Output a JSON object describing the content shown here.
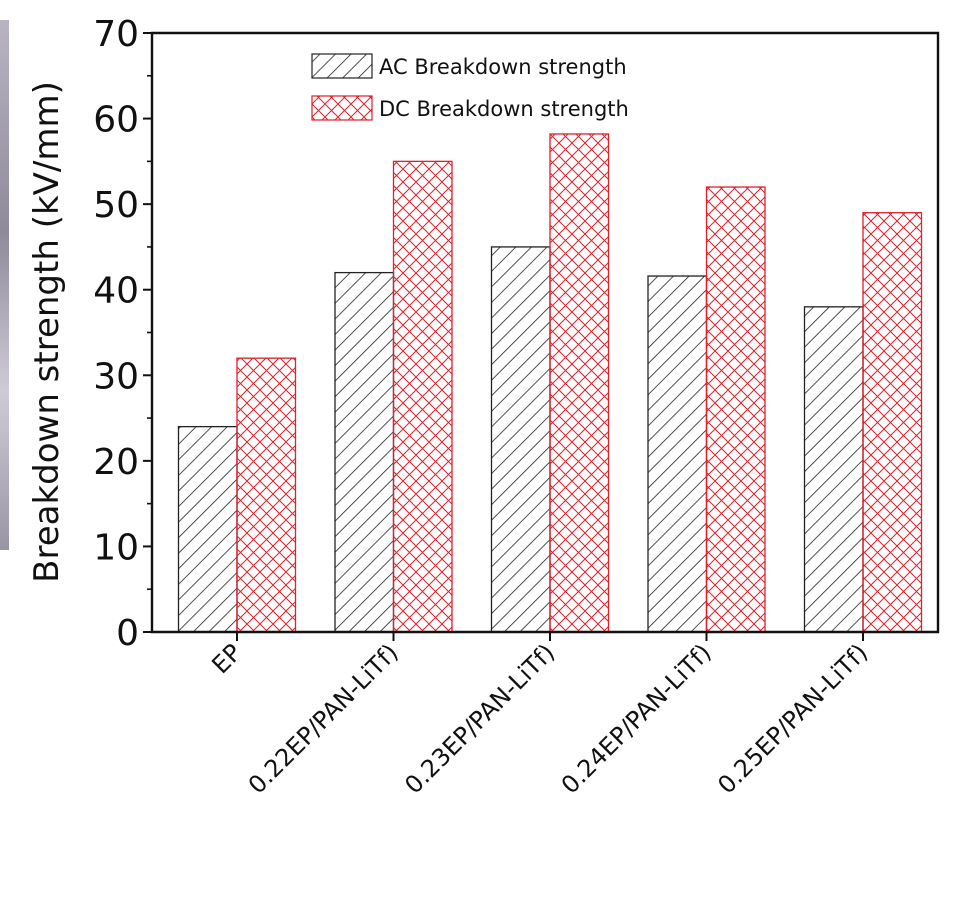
{
  "chart_data": {
    "type": "bar",
    "title": "",
    "xlabel": "",
    "ylabel": "Breakdown strength (kV/mm)",
    "ylim": [
      0,
      70
    ],
    "yticks": [
      0,
      10,
      20,
      30,
      40,
      50,
      60,
      70
    ],
    "grid": false,
    "legend_position": "top-left",
    "categories": [
      "EP",
      "0.22EP/PAN-LiTf)",
      "0.23EP/PAN-LiTf)",
      "0.24EP/PAN-LiTf)",
      "0.25EP/PAN-LiTf)"
    ],
    "series": [
      {
        "name": "AC Breakdown strength",
        "color": "#222222",
        "pattern": "diagonal",
        "values": [
          24,
          42,
          45,
          41.6,
          38
        ]
      },
      {
        "name": "DC Breakdown strength",
        "color": "#e0202a",
        "pattern": "crosshatch",
        "values": [
          32,
          55,
          58.2,
          52,
          49
        ]
      }
    ]
  }
}
